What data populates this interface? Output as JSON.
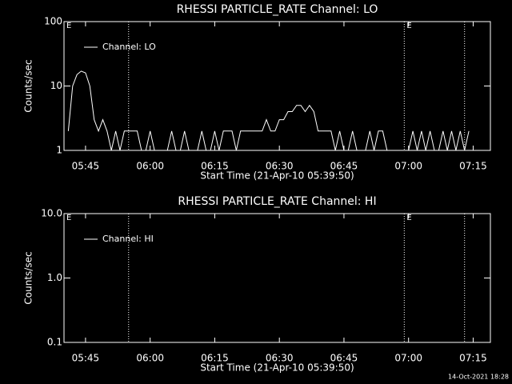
{
  "chart_data": [
    {
      "type": "line",
      "title": "RHESSI PARTICLE_RATE Channel: LO",
      "x_label": "Start Time (21-Apr-10 05:39:50)",
      "y_label": "Counts/sec",
      "log_y": true,
      "xlim": [
        340,
        439
      ],
      "ylim": [
        1,
        100
      ],
      "xticks": [
        {
          "value": 345,
          "label": "05:45"
        },
        {
          "value": 360,
          "label": "06:00"
        },
        {
          "value": 375,
          "label": "06:15"
        },
        {
          "value": 390,
          "label": "06:30"
        },
        {
          "value": 405,
          "label": "06:45"
        },
        {
          "value": 420,
          "label": "07:00"
        },
        {
          "value": 435,
          "label": "07:15"
        }
      ],
      "yticks": [
        1,
        10,
        100
      ],
      "vlines": [
        355,
        419,
        433
      ],
      "annotations": [
        {
          "text": "E",
          "x": 340
        },
        {
          "text": "E",
          "x": 419
        }
      ],
      "legend": "top-left",
      "x": [
        341,
        342,
        343,
        344,
        345,
        346,
        347,
        348,
        349,
        350,
        351,
        352,
        353,
        354,
        355,
        356,
        357,
        358,
        359,
        360,
        361,
        362,
        363,
        364,
        365,
        366,
        367,
        368,
        369,
        370,
        371,
        372,
        373,
        374,
        375,
        376,
        377,
        378,
        379,
        380,
        381,
        382,
        383,
        384,
        385,
        386,
        387,
        388,
        389,
        390,
        391,
        392,
        393,
        394,
        395,
        396,
        397,
        398,
        399,
        400,
        401,
        402,
        403,
        404,
        405,
        406,
        407,
        408,
        409,
        410,
        411,
        412,
        413,
        414,
        415,
        416,
        417,
        418,
        419,
        420,
        421,
        422,
        423,
        424,
        425,
        426,
        427,
        428,
        429,
        430,
        431,
        432,
        433,
        434
      ],
      "series": [
        {
          "name": "Channel: LO",
          "color": "#ffffff",
          "values": [
            2,
            10,
            15,
            17,
            16,
            10,
            3,
            2,
            3,
            2,
            1,
            2,
            1,
            2,
            2,
            2,
            2,
            1,
            1,
            2,
            1,
            1,
            1,
            1,
            2,
            1,
            1,
            2,
            1,
            1,
            1,
            2,
            1,
            1,
            2,
            1,
            2,
            2,
            2,
            1,
            2,
            2,
            2,
            2,
            2,
            2,
            3,
            2,
            2,
            3,
            3,
            4,
            4,
            5,
            5,
            4,
            5,
            4,
            2,
            2,
            2,
            2,
            1,
            2,
            1,
            1,
            2,
            1,
            1,
            1,
            2,
            1,
            2,
            2,
            1,
            1,
            1,
            1,
            1,
            1,
            2,
            1,
            2,
            1,
            2,
            1,
            1,
            2,
            1,
            2,
            1,
            2,
            1,
            2
          ]
        }
      ]
    },
    {
      "type": "line",
      "title": "RHESSI PARTICLE_RATE Channel: HI",
      "x_label": "Start Time (21-Apr-10 05:39:50)",
      "y_label": "Counts/sec",
      "log_y": true,
      "xlim": [
        340,
        439
      ],
      "ylim": [
        0.1,
        10
      ],
      "xticks": [
        {
          "value": 345,
          "label": "05:45"
        },
        {
          "value": 360,
          "label": "06:00"
        },
        {
          "value": 375,
          "label": "06:15"
        },
        {
          "value": 390,
          "label": "06:30"
        },
        {
          "value": 405,
          "label": "06:45"
        },
        {
          "value": 420,
          "label": "07:00"
        },
        {
          "value": 435,
          "label": "07:15"
        }
      ],
      "yticks": [
        0.1,
        {
          "value": 1,
          "label": "1.0"
        },
        {
          "value": 10,
          "label": "10.0"
        }
      ],
      "vlines": [
        355,
        419,
        433
      ],
      "annotations": [
        {
          "text": "E",
          "x": 340
        },
        {
          "text": "E",
          "x": 419
        }
      ],
      "legend": "top-left",
      "x": [],
      "series": [
        {
          "name": "Channel: HI",
          "color": "#ffffff",
          "values": []
        }
      ]
    }
  ],
  "footer": "14-Oct-2021 18:28"
}
